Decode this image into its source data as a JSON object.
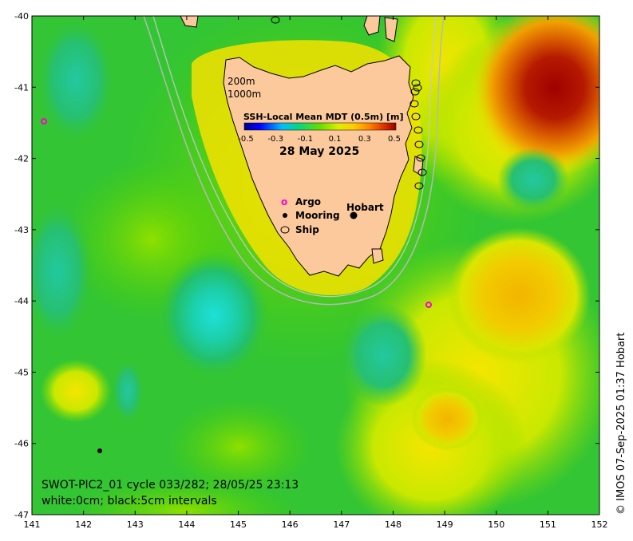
{
  "map": {
    "lon_ticks": [
      "141",
      "142",
      "143",
      "144",
      "145",
      "146",
      "147",
      "148",
      "149",
      "150",
      "151",
      "152"
    ],
    "lat_ticks": [
      "-40",
      "-41",
      "-42",
      "-43",
      "-44",
      "-45",
      "-46",
      "-47"
    ],
    "colorbar": {
      "title": "SSH-Local Mean MDT (0.5m) [m]",
      "ticks": [
        "-0.5",
        "-0.3",
        "-0.1",
        "0.1",
        "0.3",
        "0.5"
      ],
      "colors": [
        "#00008b",
        "#0000ff",
        "#0066ff",
        "#00bfff",
        "#00e5cc",
        "#00e080",
        "#22cc22",
        "#66dd00",
        "#aaee00",
        "#ddee00",
        "#ffee00",
        "#ffcc00",
        "#ff9900",
        "#ee6600",
        "#cc3300",
        "#990000"
      ]
    },
    "date": "28 May 2025",
    "isobaths": {
      "a": "200m",
      "b": "1000m"
    },
    "legend": {
      "argo": "Argo",
      "mooring": "Mooring",
      "ship": "Ship",
      "argo_symbol": "o"
    },
    "city": "Hobart",
    "caption_line1": "SWOT-PIC2_01 cycle 033/282; 28/05/25 23:13",
    "caption_line2": "white:0cm; black:5cm intervals",
    "credit": "© IMOS 07-Sep-2025 01:37 Hobart",
    "colors": {
      "background_green": "#33cc33",
      "land": "#fbc99b",
      "argo": "#ff00cc"
    }
  }
}
